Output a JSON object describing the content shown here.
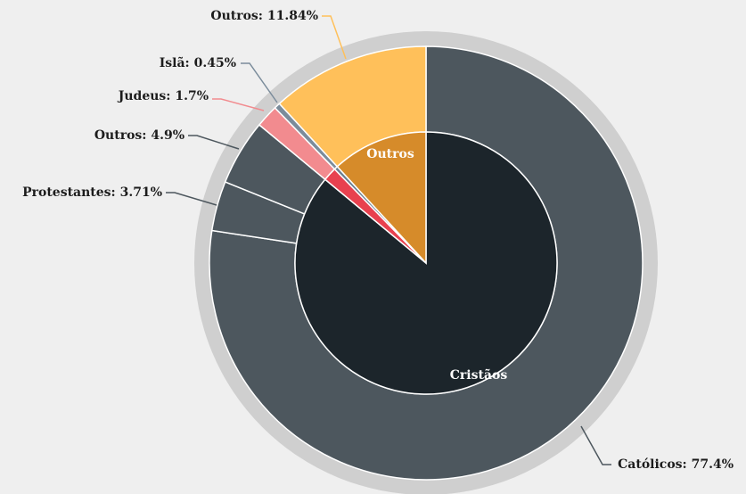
{
  "chart_data": {
    "type": "sunburst",
    "outer": {
      "values": [
        77.4,
        3.71,
        4.9,
        1.7,
        0.45,
        11.84
      ],
      "value_labels": [
        "Católicos: 77.4%",
        "Protestantes: 3.71%",
        "Outros: 4.9%",
        "Judeus: 1.7%",
        "Islã: 0.45%",
        "Outros: 11.84%"
      ],
      "colors": [
        "#4d575e",
        "#4d575e",
        "#4d575e",
        "#f28b8f",
        "#7b8c9b",
        "#ffc05a"
      ]
    },
    "inner": {
      "categories": [
        "Cristãos",
        null,
        null,
        "Outros"
      ],
      "values": [
        86.01,
        1.7,
        0.45,
        11.84
      ],
      "colors": [
        "#1c252b",
        "#e8414f",
        "#6b7f90",
        "#d68b2a"
      ]
    }
  }
}
